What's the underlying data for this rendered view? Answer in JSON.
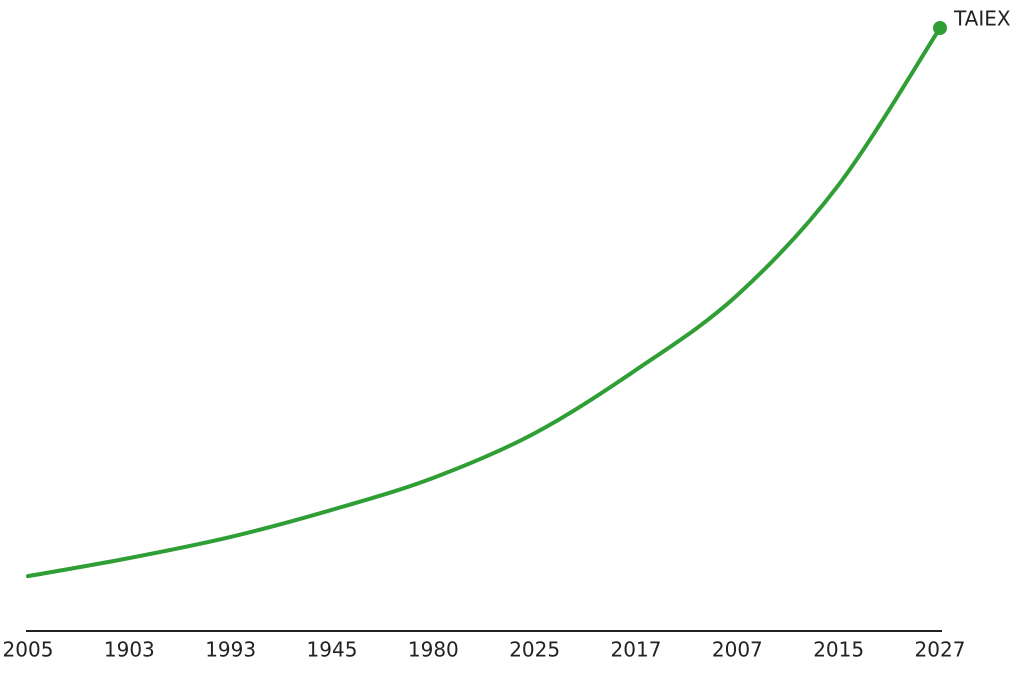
{
  "chart_data": {
    "type": "line",
    "categories": [
      "2005",
      "1903",
      "1993",
      "1945",
      "1980",
      "2025",
      "2017",
      "2007",
      "2015",
      "2027"
    ],
    "series": [
      {
        "name": "TAIEX",
        "color": "#2e9e35",
        "values": [
          9.1,
          12.1,
          15.6,
          20.1,
          25.4,
          32.8,
          43.3,
          55.7,
          74.0,
          100
        ]
      }
    ],
    "ylim": [
      0,
      100
    ]
  }
}
